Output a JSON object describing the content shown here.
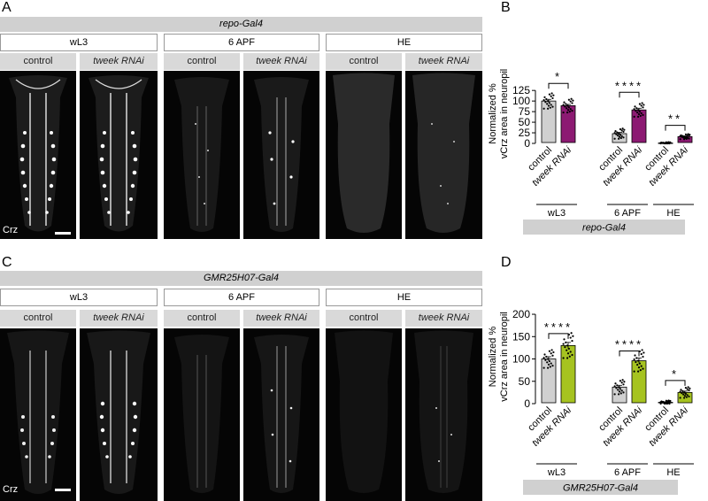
{
  "figure": {
    "panel_letters": [
      "A",
      "B",
      "C",
      "D"
    ],
    "top": {
      "driver": "repo-Gal4",
      "stages": [
        "wL3",
        "6 APF",
        "HE"
      ],
      "conditions": [
        "control",
        "tweek RNAi"
      ],
      "stain": "Crz"
    },
    "bottom": {
      "driver": "GMR25H07-Gal4",
      "stages": [
        "wL3",
        "6 APF",
        "HE"
      ],
      "conditions": [
        "control",
        "tweek RNAi"
      ],
      "stain": "Crz"
    }
  },
  "chart_data": [
    {
      "type": "bar",
      "panel": "B",
      "ylabel": "Normalized % vCrz area in neuropil",
      "ylim": [
        0,
        140
      ],
      "yticks": [
        0,
        25,
        50,
        75,
        100,
        125
      ],
      "categories": [
        "control",
        "tweek RNAi",
        "control",
        "tweek RNAi",
        "control",
        "tweek RNAi"
      ],
      "groups": [
        "wL3",
        "6 APF",
        "HE"
      ],
      "values": [
        100,
        89,
        23,
        79,
        1,
        16
      ],
      "errors": [
        4,
        3,
        3,
        4,
        0.5,
        1.5
      ],
      "bar_colors": [
        "#d0d0d0",
        "#8c1a72",
        "#d0d0d0",
        "#8c1a72",
        "#d0d0d0",
        "#8c1a72"
      ],
      "significance": [
        "*",
        "****",
        "**"
      ],
      "footer": "repo-Gal4"
    },
    {
      "type": "bar",
      "panel": "D",
      "ylabel": "Normalized % vCrz area in neuropil",
      "ylim": [
        0,
        210
      ],
      "yticks": [
        0,
        50,
        100,
        150,
        200
      ],
      "categories": [
        "control",
        "tweek RNAi",
        "control",
        "tweek RNAi",
        "control",
        "tweek RNAi"
      ],
      "groups": [
        "wL3",
        "6 APF",
        "HE"
      ],
      "values": [
        100,
        130,
        37,
        96,
        3,
        25
      ],
      "errors": [
        5,
        7,
        4,
        6,
        1,
        3
      ],
      "bar_colors": [
        "#d0d0d0",
        "#a6c320",
        "#d0d0d0",
        "#a6c320",
        "#d0d0d0",
        "#a6c320"
      ],
      "significance": [
        "****",
        "****",
        "*"
      ],
      "footer": "GMR25H07-Gal4"
    }
  ]
}
